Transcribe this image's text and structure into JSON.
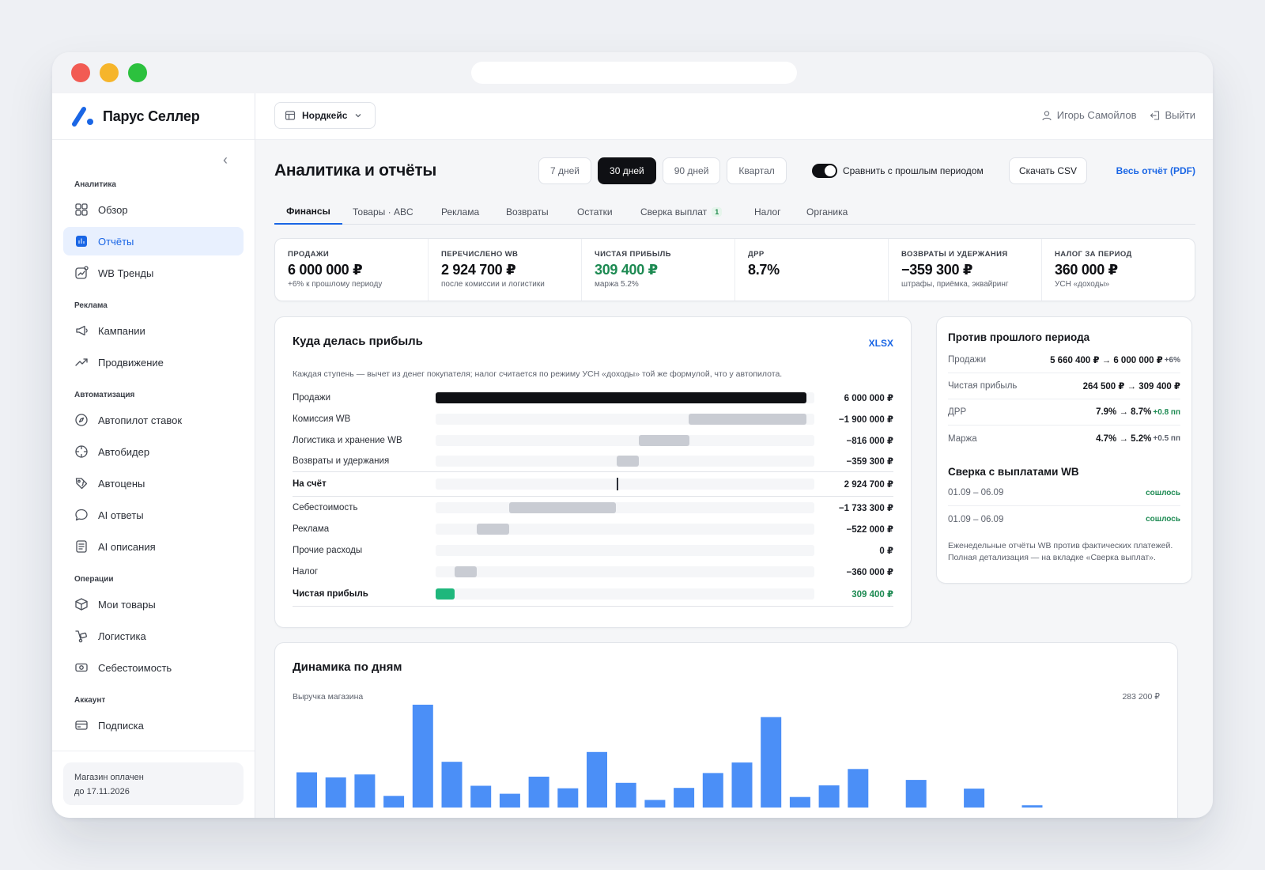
{
  "brand": {
    "name": "Парус Селлер"
  },
  "sidebar": {
    "groups": [
      {
        "title": "Аналитика",
        "items": [
          {
            "label": "Обзор",
            "icon": "grid-icon"
          },
          {
            "label": "Отчёты",
            "icon": "bar-chart-icon",
            "active": true
          },
          {
            "label": "WB Тренды",
            "icon": "trend-chart-icon"
          }
        ]
      },
      {
        "title": "Реклама",
        "items": [
          {
            "label": "Кампании",
            "icon": "megaphone-icon"
          },
          {
            "label": "Продвижение",
            "icon": "trending-up-icon"
          }
        ]
      },
      {
        "title": "Автоматизация",
        "items": [
          {
            "label": "Автопилот ставок",
            "icon": "compass-icon"
          },
          {
            "label": "Автобидер",
            "icon": "crosshair-icon"
          },
          {
            "label": "Автоцены",
            "icon": "price-tag-icon"
          },
          {
            "label": "AI ответы",
            "icon": "chat-bubble-icon"
          },
          {
            "label": "AI описания",
            "icon": "document-icon"
          }
        ]
      },
      {
        "title": "Операции",
        "items": [
          {
            "label": "Мои товары",
            "icon": "box-icon"
          },
          {
            "label": "Логистика",
            "icon": "hand-truck-icon"
          },
          {
            "label": "Себестоимость",
            "icon": "cash-icon"
          }
        ]
      },
      {
        "title": "Аккаунт",
        "items": [
          {
            "label": "Подписка",
            "icon": "credit-card-icon"
          }
        ]
      }
    ],
    "paid_line1": "Магазин оплачен",
    "paid_line2": "до 17.11.2026"
  },
  "topbar": {
    "store": "Нордкейс",
    "user": "Игорь Самойлов",
    "logout": "Выйти"
  },
  "header": {
    "title": "Аналитика и отчёты",
    "periods": [
      {
        "label": "7 дней",
        "active": false
      },
      {
        "label": "30 дней",
        "active": true
      },
      {
        "label": "90 дней",
        "active": false
      },
      {
        "label": "Квартал",
        "active": false
      }
    ],
    "compare_label": "Сравнить с прошлым периодом",
    "compare_on": true,
    "csv": "Скачать CSV",
    "pdf": "Весь отчёт (PDF)"
  },
  "tabs": [
    {
      "label": "Финансы",
      "active": true
    },
    {
      "label": "Товары · ABC"
    },
    {
      "label": "Реклама"
    },
    {
      "label": "Возвраты"
    },
    {
      "label": "Остатки"
    },
    {
      "label": "Сверка выплат",
      "badge": "1"
    },
    {
      "label": "Налог"
    },
    {
      "label": "Органика"
    }
  ],
  "kpis": [
    {
      "label": "ПРОДАЖИ",
      "value": "6 000 000 ₽",
      "sub": "+6% к прошлому периоду"
    },
    {
      "label": "ПЕРЕЧИСЛЕНО WB",
      "value": "2 924 700 ₽",
      "sub": "после комиссии и логистики"
    },
    {
      "label": "ЧИСТАЯ ПРИБЫЛЬ",
      "value": "309 400 ₽",
      "sub": "маржа 5.2%",
      "accent": "#1d8a52"
    },
    {
      "label": "ДРР",
      "value": "8.7%",
      "sub": ""
    },
    {
      "label": "ВОЗВРАТЫ И УДЕРЖАНИЯ",
      "value": "−359 300 ₽",
      "sub": "штрафы, приёмка, эквайринг"
    },
    {
      "label": "НАЛОГ ЗА ПЕРИОД",
      "value": "360 000 ₽",
      "sub": "УСН «доходы»"
    }
  ],
  "profit": {
    "title": "Куда делась прибыль",
    "export": "XLSX",
    "note": "Каждая ступень — вычет из денег покупателя; налог считается по режиму УСН «доходы» той же формулой, что у автопилота.",
    "rows": [
      {
        "label": "Продажи",
        "value": "6 000 000 ₽",
        "amount": 6000000,
        "start": 0,
        "kind": "total"
      },
      {
        "label": "Комиссия WB",
        "value": "−1 900 000 ₽",
        "amount": -1900000,
        "start": 6000000,
        "kind": "deduct"
      },
      {
        "label": "Логистика и хранение WB",
        "value": "−816 000 ₽",
        "amount": -816000,
        "start": 4100000,
        "kind": "deduct"
      },
      {
        "label": "Возвраты и удержания",
        "value": "−359 300 ₽",
        "amount": -359300,
        "start": 3284000,
        "kind": "deduct"
      },
      {
        "label": "На счёт",
        "value": "2 924 700 ₽",
        "amount": 2924700,
        "start": 0,
        "kind": "subtotal"
      },
      {
        "label": "Себестоимость",
        "value": "−1 733 300 ₽",
        "amount": -1733300,
        "start": 2924700,
        "kind": "deduct"
      },
      {
        "label": "Реклама",
        "value": "−522 000 ₽",
        "amount": -522000,
        "start": 1191400,
        "kind": "deduct"
      },
      {
        "label": "Прочие расходы",
        "value": "0 ₽",
        "amount": 0,
        "start": 669400,
        "kind": "deduct"
      },
      {
        "label": "Налог",
        "value": "−360 000 ₽",
        "amount": -360000,
        "start": 669400,
        "kind": "deduct"
      },
      {
        "label": "Чистая прибыль",
        "value": "309 400 ₽",
        "amount": 309400,
        "start": 0,
        "kind": "result"
      }
    ],
    "scale_max": 6000000
  },
  "compare_card": {
    "title": "Против прошлого периода",
    "rows": [
      {
        "label": "Продажи",
        "value": "5 660 400 ₽ → 6 000 000 ₽",
        "delta": "+6%",
        "delta_positive": false
      },
      {
        "label": "Чистая прибыль",
        "value": "264 500 ₽ → 309 400 ₽",
        "delta": "",
        "delta_positive": false
      },
      {
        "label": "ДРР",
        "value": "7.9% → 8.7%",
        "delta": "+0.8 пп",
        "delta_positive": true
      },
      {
        "label": "Маржа",
        "value": "4.7% → 5.2%",
        "delta": "+0.5 пп",
        "delta_positive": false
      }
    ],
    "recon_title": "Сверка с выплатами WB",
    "recon": [
      {
        "period": "01.09 – 06.09",
        "status": "сошлось"
      },
      {
        "period": "01.09 – 06.09",
        "status": "сошлось"
      }
    ],
    "recon_note": "Еженедельные отчёты WB против фактических платежей. Полная детализация — на вкладке «Сверка выплат»."
  },
  "dynamics": {
    "title": "Динамика по дням",
    "series_label": "Выручка магазина",
    "max_label": "283 200 ₽"
  },
  "chart_data": {
    "type": "bar",
    "title": "Динамика по дням",
    "ylabel": "Выручка магазина",
    "ymax": 283200,
    "values": [
      97000,
      83000,
      91000,
      32000,
      283200,
      126000,
      60000,
      38000,
      85000,
      53000,
      153000,
      68000,
      21000,
      54000,
      95000,
      124000,
      249000,
      29000,
      61000,
      106000,
      0,
      76000,
      0,
      52000,
      0,
      6000,
      0,
      0,
      0,
      0
    ],
    "color": "#4b8ff7"
  }
}
